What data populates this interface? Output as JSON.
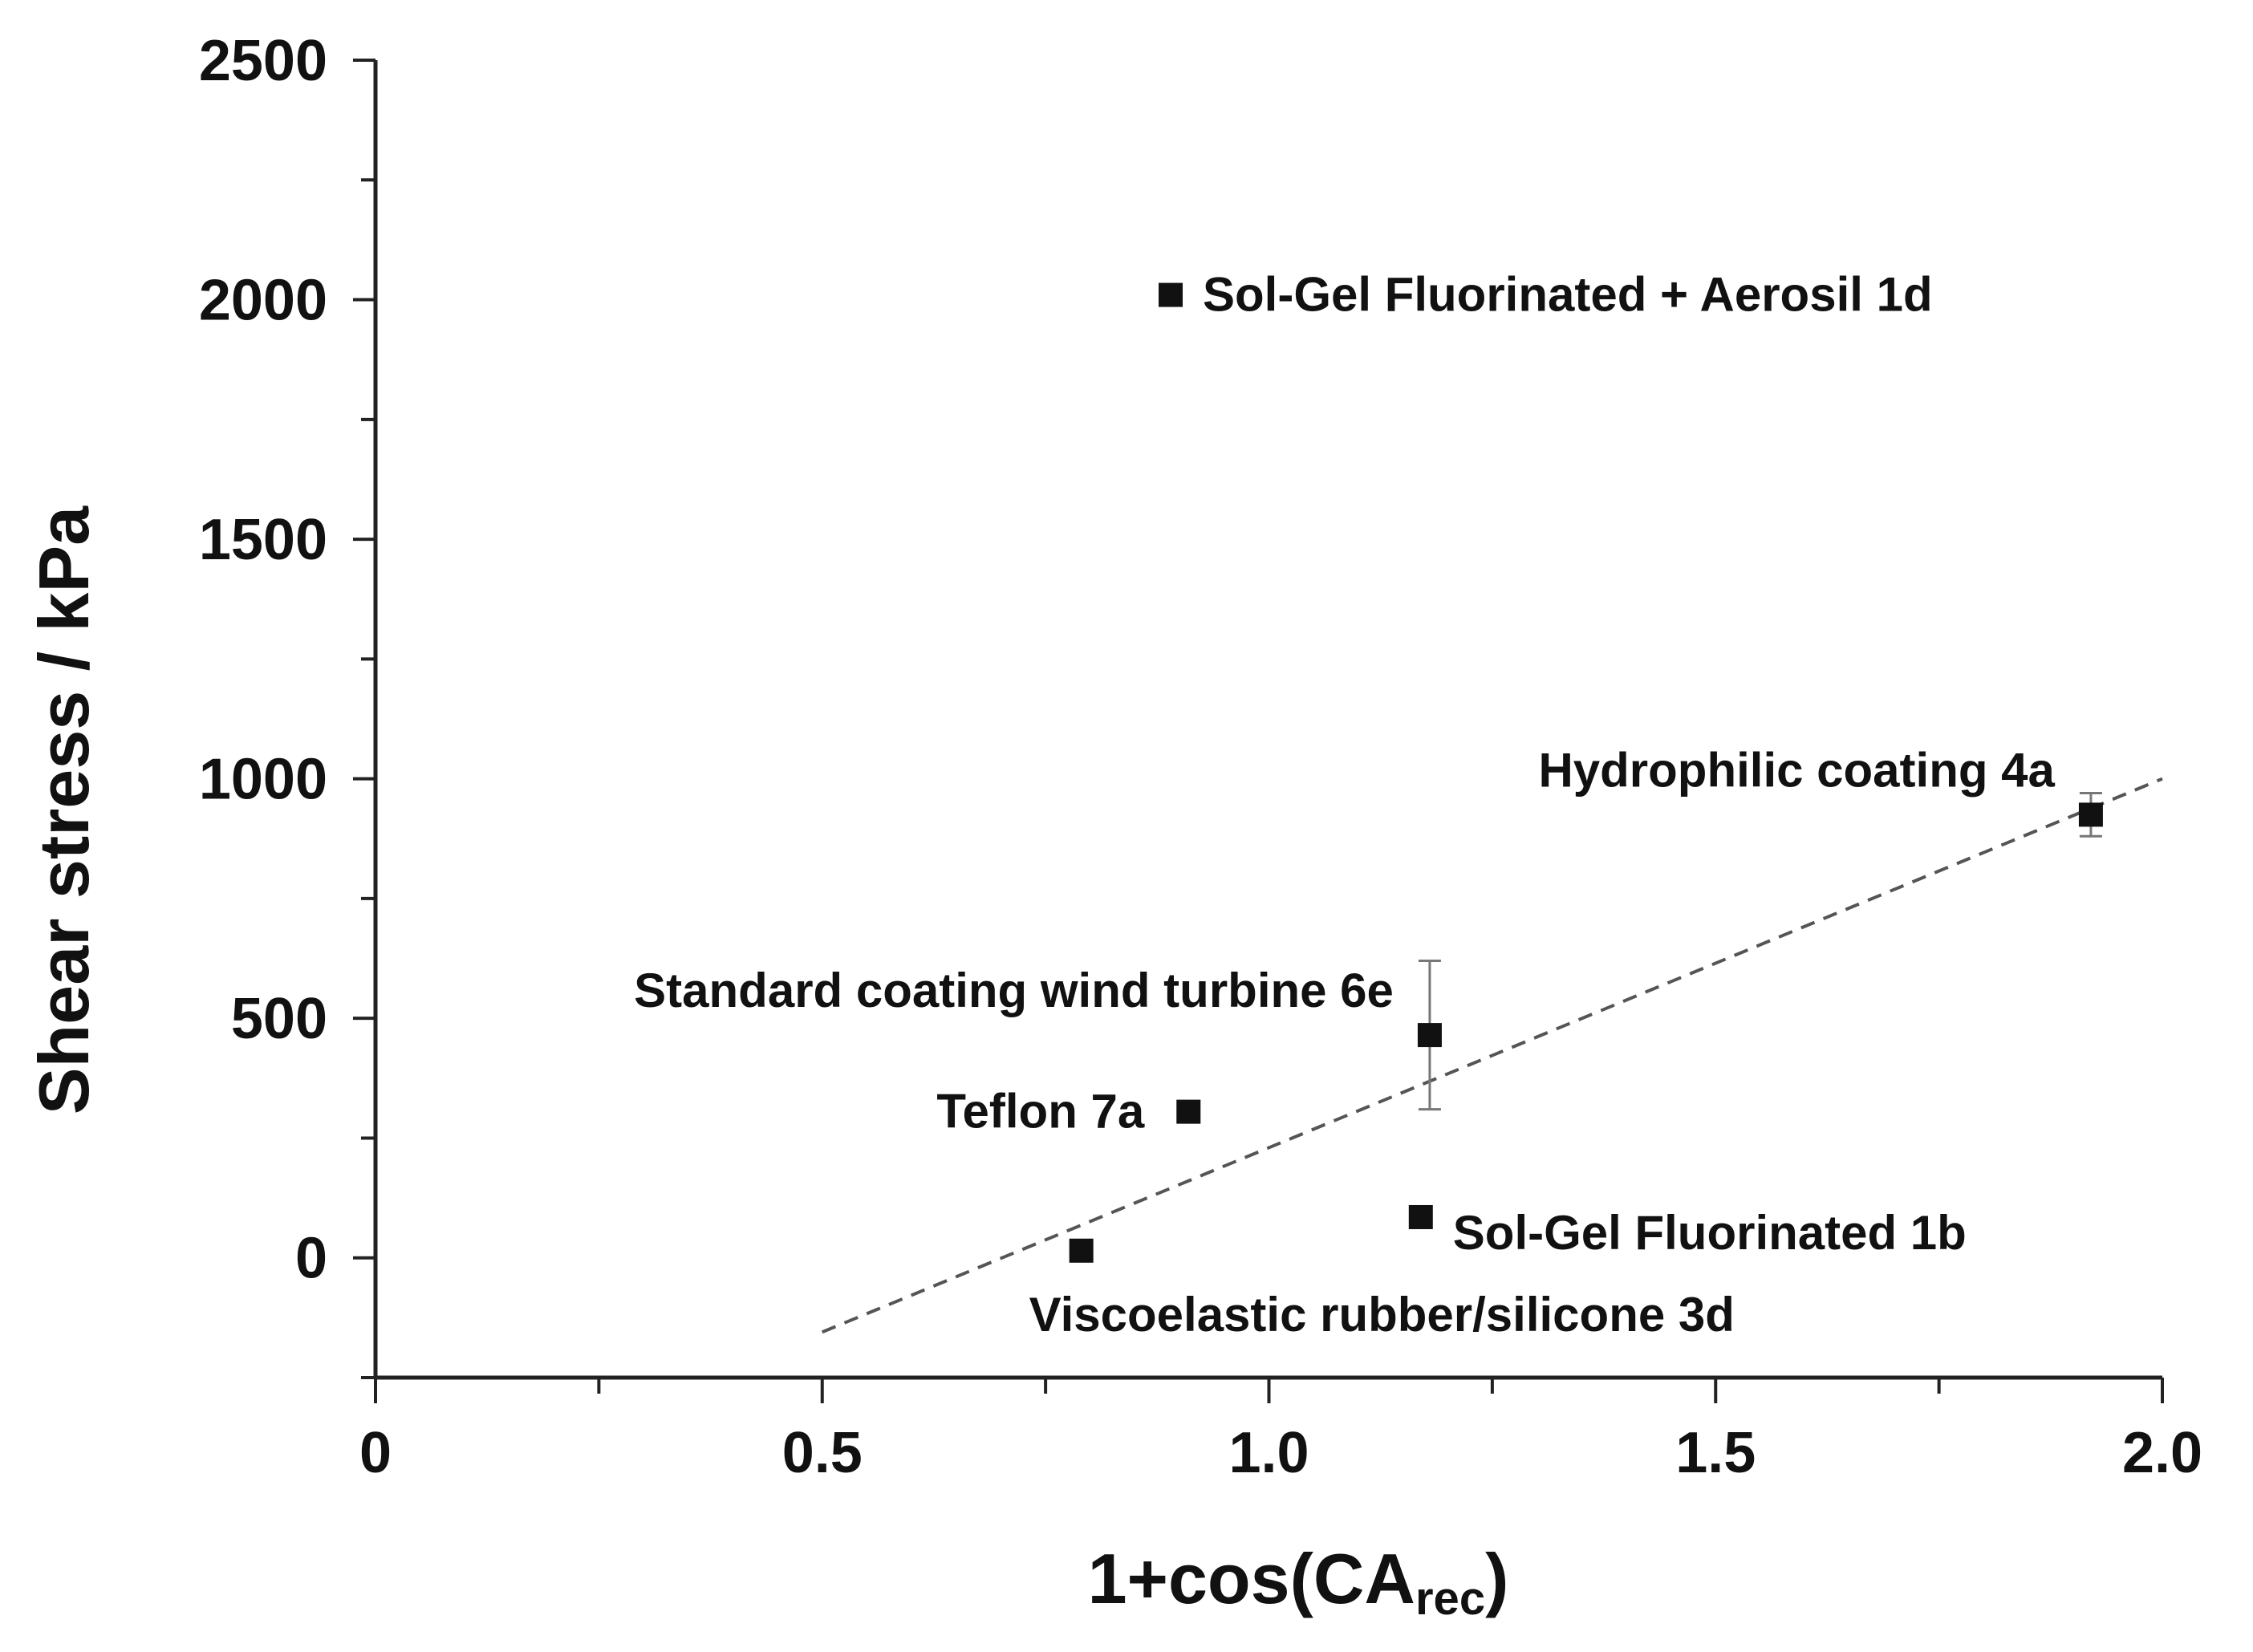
{
  "chart_data": {
    "type": "scatter",
    "title": "",
    "xlabel": "1+cos(CA",
    "xlabel_sub": "rec",
    "xlabel_close": ")",
    "ylabel": "Shear stress / kPa",
    "xlim": [
      0,
      2.0
    ],
    "ylim": [
      -250,
      2500
    ],
    "grid": false,
    "legend": "none",
    "x_ticks": [
      {
        "value": 0,
        "label": "0"
      },
      {
        "value": 0.5,
        "label": "0.5"
      },
      {
        "value": 1.0,
        "label": "1.0"
      },
      {
        "value": 1.5,
        "label": "1.5"
      },
      {
        "value": 2.0,
        "label": "2.0"
      }
    ],
    "y_ticks": [
      {
        "value": 0,
        "label": "0"
      },
      {
        "value": 500,
        "label": "500"
      },
      {
        "value": 1000,
        "label": "1000"
      },
      {
        "value": 1500,
        "label": "1500"
      },
      {
        "value": 2000,
        "label": "2000"
      },
      {
        "value": 2500,
        "label": "2500"
      }
    ],
    "points": [
      {
        "name": "sol-gel-fluorinated-aerosil",
        "label": "Sol-Gel Fluorinated + Aerosil 1d",
        "x": 0.89,
        "y": 2010,
        "err": null,
        "label_side": "right"
      },
      {
        "name": "hydrophilic-coating",
        "label": "Hydrophilic coating 4a",
        "x": 1.92,
        "y": 925,
        "err": 45,
        "label_side": "left-up"
      },
      {
        "name": "standard-coating-wind-turbine",
        "label": "Standard coating wind turbine 6e",
        "x": 1.18,
        "y": 465,
        "err": 155,
        "label_side": "left-up"
      },
      {
        "name": "teflon",
        "label": "Teflon 7a",
        "x": 0.91,
        "y": 305,
        "err": null,
        "label_side": "left"
      },
      {
        "name": "sol-gel-fluorinated",
        "label": "Sol-Gel Fluorinated 1b",
        "x": 1.17,
        "y": 85,
        "err": null,
        "label_side": "right-down"
      },
      {
        "name": "viscoelastic-rubber-silicone",
        "label": "Viscoelastic rubber/silicone 3d",
        "x": 0.79,
        "y": 15,
        "err": null,
        "label_side": "below-right"
      }
    ],
    "fit_line": {
      "style": "dashed",
      "x": [
        0.5,
        2.0
      ],
      "y": [
        -155,
        1000
      ]
    }
  }
}
